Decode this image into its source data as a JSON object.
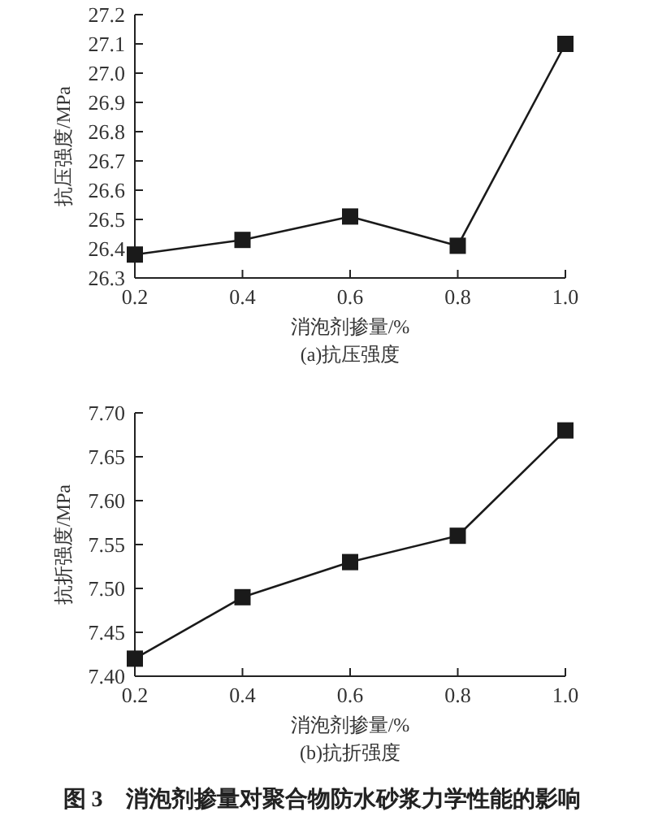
{
  "chart_data": [
    {
      "type": "line",
      "subtitle": "(a)抗压强度",
      "xlabel": "消泡剂掺量/%",
      "ylabel": "抗压强度/MPa",
      "x": [
        0.2,
        0.4,
        0.6,
        0.8,
        1.0
      ],
      "series": [
        {
          "color": "#1a1a1a",
          "values": [
            26.38,
            26.43,
            26.51,
            26.41,
            27.1
          ]
        }
      ],
      "xlim": [
        0.2,
        1.0
      ],
      "xticks": [
        {
          "value": 0.2,
          "label": "0.2"
        },
        {
          "value": 0.4,
          "label": "0.4"
        },
        {
          "value": 0.6,
          "label": "0.6"
        },
        {
          "value": 0.8,
          "label": "0.8"
        },
        {
          "value": 1.0,
          "label": "1.0"
        }
      ],
      "ylim": [
        26.3,
        27.2
      ],
      "yticks": [
        {
          "value": 26.3,
          "label": "26.3"
        },
        {
          "value": 26.4,
          "label": "26.4"
        },
        {
          "value": 26.5,
          "label": "26.5"
        },
        {
          "value": 26.6,
          "label": "26.6"
        },
        {
          "value": 26.7,
          "label": "26.7"
        },
        {
          "value": 26.8,
          "label": "26.8"
        },
        {
          "value": 26.9,
          "label": "26.9"
        },
        {
          "value": 27.0,
          "label": "27.0"
        },
        {
          "value": 27.1,
          "label": "27.1"
        },
        {
          "value": 27.2,
          "label": "27.2"
        }
      ],
      "marker": "square",
      "line_style": "solid",
      "grid": false
    },
    {
      "type": "line",
      "subtitle": "(b)抗折强度",
      "xlabel": "消泡剂掺量/%",
      "ylabel": "抗折强度/MPa",
      "x": [
        0.2,
        0.4,
        0.6,
        0.8,
        1.0
      ],
      "series": [
        {
          "color": "#1a1a1a",
          "values": [
            7.42,
            7.49,
            7.53,
            7.56,
            7.68
          ]
        }
      ],
      "xlim": [
        0.2,
        1.0
      ],
      "xticks": [
        {
          "value": 0.2,
          "label": "0.2"
        },
        {
          "value": 0.4,
          "label": "0.4"
        },
        {
          "value": 0.6,
          "label": "0.6"
        },
        {
          "value": 0.8,
          "label": "0.8"
        },
        {
          "value": 1.0,
          "label": "1.0"
        }
      ],
      "ylim": [
        7.4,
        7.7
      ],
      "yticks": [
        {
          "value": 7.4,
          "label": "7.40"
        },
        {
          "value": 7.45,
          "label": "7.45"
        },
        {
          "value": 7.5,
          "label": "7.50"
        },
        {
          "value": 7.55,
          "label": "7.55"
        },
        {
          "value": 7.6,
          "label": "7.60"
        },
        {
          "value": 7.65,
          "label": "7.65"
        },
        {
          "value": 7.7,
          "label": "7.70"
        }
      ],
      "marker": "square",
      "line_style": "solid",
      "grid": false,
      "annotations": [
        "图 3　消泡剂掺量对聚合物防水砂浆力学性能的影响"
      ]
    }
  ]
}
